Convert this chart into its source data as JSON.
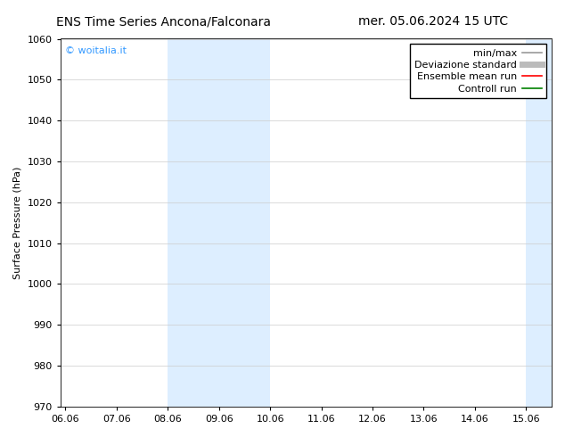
{
  "title_left": "ENS Time Series Ancona/Falconara",
  "title_right": "mer. 05.06.2024 15 UTC",
  "ylabel": "Surface Pressure (hPa)",
  "ylim": [
    970,
    1060
  ],
  "yticks": [
    970,
    980,
    990,
    1000,
    1010,
    1020,
    1030,
    1040,
    1050,
    1060
  ],
  "xtick_labels": [
    "06.06",
    "07.06",
    "08.06",
    "09.06",
    "10.06",
    "11.06",
    "12.06",
    "13.06",
    "14.06",
    "15.06"
  ],
  "xtick_positions": [
    0,
    1,
    2,
    3,
    4,
    5,
    6,
    7,
    8,
    9
  ],
  "xlim": [
    -0.1,
    9.5
  ],
  "shaded_regions": [
    {
      "xmin": 2.0,
      "xmax": 4.0,
      "color": "#ddeeff"
    },
    {
      "xmin": 9.0,
      "xmax": 9.5,
      "color": "#ddeeff"
    }
  ],
  "watermark": "© woitalia.it",
  "watermark_color": "#3399ff",
  "legend_items": [
    {
      "label": "min/max",
      "color": "#999999",
      "lw": 1.2
    },
    {
      "label": "Deviazione standard",
      "color": "#bbbbbb",
      "lw": 5
    },
    {
      "label": "Ensemble mean run",
      "color": "red",
      "lw": 1.2
    },
    {
      "label": "Controll run",
      "color": "green",
      "lw": 1.2
    }
  ],
  "bg_color": "#ffffff",
  "font_size_title": 10,
  "font_size_tick": 8,
  "font_size_legend": 8,
  "font_size_watermark": 8,
  "font_size_ylabel": 8
}
